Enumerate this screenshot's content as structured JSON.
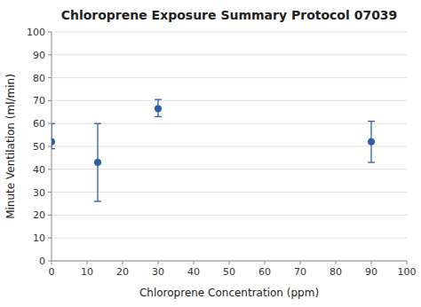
{
  "chart_data": {
    "type": "scatter",
    "title": "Chloroprene Exposure Summary Protocol 07039",
    "x_label": "Chloroprene Concentration (ppm)",
    "y_label": "Minute Ventilation (ml/min)",
    "x": [
      0,
      13,
      30,
      90
    ],
    "values": [
      52,
      43,
      66.5,
      52
    ],
    "error_lower": [
      3,
      17,
      3.5,
      9
    ],
    "error_upper": [
      8,
      17,
      4,
      9
    ],
    "color": "#2a5fa5",
    "marker": "circle",
    "xlim": [
      0,
      100
    ],
    "ylim": [
      0,
      100
    ],
    "xticks": [
      0,
      10,
      20,
      30,
      40,
      50,
      60,
      70,
      80,
      90,
      100
    ],
    "yticks": [
      0,
      10,
      20,
      30,
      40,
      50,
      60,
      70,
      80,
      90,
      100
    ],
    "grid": "y"
  }
}
